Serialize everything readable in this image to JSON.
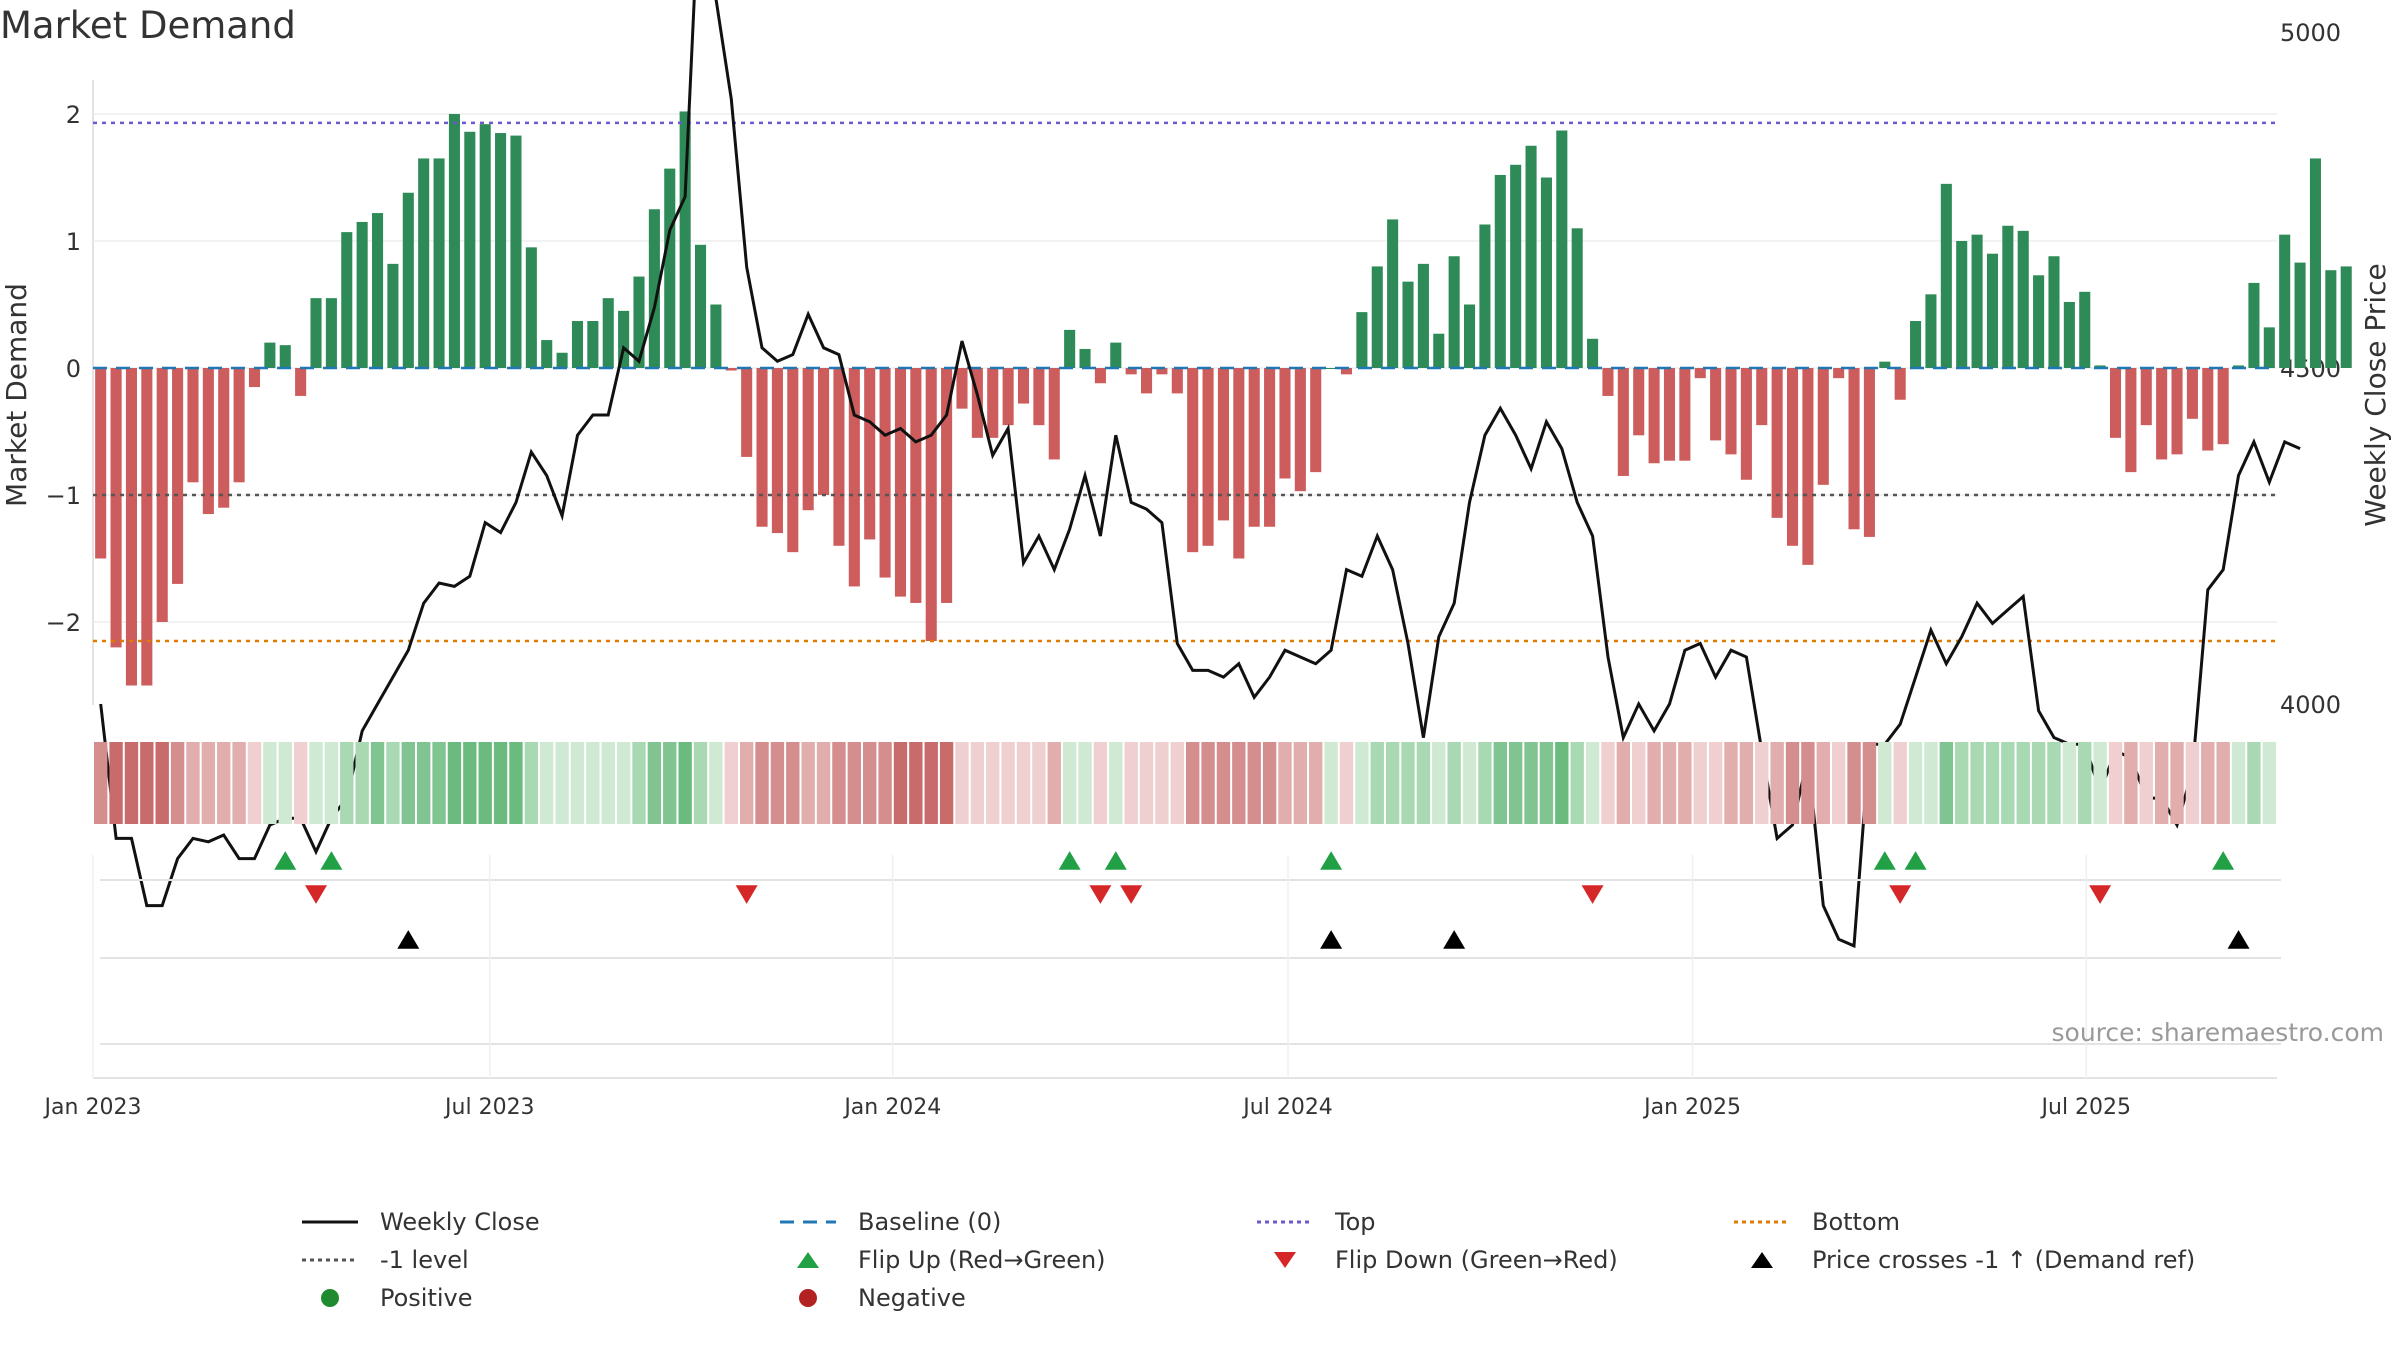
{
  "title": "Market Demand",
  "source": "source: sharemaestro.com",
  "colors": {
    "positive": "#2e8b57",
    "negative": "#cd5c5c",
    "price": "#111111",
    "baseline": "#1f77b4",
    "top": "#6a5acd",
    "bottom": "#e07b00",
    "minus_one": "#555555",
    "flip_up": "#22a046",
    "flip_down": "#d62728",
    "cross": "#000000"
  },
  "chart_data": {
    "type": "bar",
    "title": "Market Demand",
    "ylabel": "Market Demand",
    "y2label": "Weekly Close Price",
    "ylim": [
      -2.7,
      2.2
    ],
    "y2lim": [
      3550,
      5400
    ],
    "yticks": [
      2,
      1,
      0,
      -1,
      -2
    ],
    "ytick_labels": [
      "2",
      "1",
      "0",
      "−1",
      "−2"
    ],
    "y2ticks": [
      5000,
      4500,
      4000
    ],
    "y2tick_labels": [
      "5000",
      "4500",
      "4000"
    ],
    "top_level": 1.93,
    "bottom_level": -2.15,
    "minus_one_level": -1,
    "x_start": "2022-12-16",
    "week_count": 142,
    "xticks": [
      {
        "label": "Jan 2023",
        "week": 3
      },
      {
        "label": "Jul 2023",
        "week": 28.8
      },
      {
        "label": "Jan 2024",
        "week": 55
      },
      {
        "label": "Jul 2024",
        "week": 80.7
      },
      {
        "label": "Jan 2025",
        "week": 107
      },
      {
        "label": "Jul 2025",
        "week": 132.6
      }
    ],
    "demand": [
      -1.5,
      -2.2,
      -2.5,
      -2.5,
      -2.0,
      -1.7,
      -0.9,
      -1.15,
      -1.1,
      -0.9,
      -0.15,
      0.2,
      0.18,
      -0.22,
      0.55,
      0.55,
      1.07,
      1.15,
      1.22,
      0.82,
      1.38,
      1.65,
      1.65,
      2.0,
      1.86,
      1.92,
      1.85,
      1.83,
      0.95,
      0.22,
      0.12,
      0.37,
      0.37,
      0.55,
      0.45,
      0.72,
      1.25,
      1.57,
      2.02,
      0.97,
      0.5,
      -0.02,
      -0.7,
      -1.25,
      -1.3,
      -1.45,
      -1.12,
      -1.0,
      -1.4,
      -1.72,
      -1.35,
      -1.65,
      -1.8,
      -1.85,
      -2.15,
      -1.85,
      -0.32,
      -0.55,
      -0.55,
      -0.45,
      -0.28,
      -0.45,
      -0.72,
      0.3,
      0.15,
      -0.12,
      0.2,
      -0.05,
      -0.2,
      -0.05,
      -0.2,
      -1.45,
      -1.4,
      -1.2,
      -1.5,
      -1.25,
      -1.25,
      -0.87,
      -0.97,
      -0.82,
      0.0,
      -0.05,
      0.44,
      0.8,
      1.17,
      0.68,
      0.82,
      0.27,
      0.88,
      0.5,
      1.13,
      1.52,
      1.6,
      1.75,
      1.5,
      1.87,
      1.1,
      0.23,
      -0.22,
      -0.85,
      -0.53,
      -0.75,
      -0.73,
      -0.73,
      -0.08,
      -0.57,
      -0.68,
      -0.88,
      -0.45,
      -1.18,
      -1.4,
      -1.55,
      -0.92,
      -0.08,
      -1.27,
      -1.33,
      0.05,
      -0.25,
      0.37,
      0.58,
      1.45,
      1.0,
      1.05,
      0.9,
      1.12,
      1.08,
      0.73,
      0.88,
      0.52,
      0.6,
      0.02,
      -0.55,
      -0.82,
      -0.45,
      -0.72,
      -0.68,
      -0.4,
      -0.65,
      -0.6,
      0.02,
      0.67,
      0.32,
      1.05,
      0.83,
      1.65,
      0.77,
      0.8
    ],
    "price": [
      4000,
      3800,
      3800,
      3700,
      3700,
      3770,
      3800,
      3795,
      3805,
      3770,
      3770,
      3820,
      3830,
      3830,
      3780,
      3830,
      3860,
      3960,
      4000,
      4040,
      4080,
      4150,
      4180,
      4175,
      4190,
      4270,
      4255,
      4300,
      4375,
      4340,
      4280,
      4400,
      4430,
      4430,
      4530,
      4510,
      4590,
      4705,
      4755,
      5250,
      5050,
      4900,
      4650,
      4530,
      4510,
      4520,
      4580,
      4530,
      4520,
      4430,
      4420,
      4400,
      4410,
      4390,
      4400,
      4430,
      4540,
      4460,
      4370,
      4410,
      4210,
      4250,
      4200,
      4260,
      4340,
      4250,
      4400,
      4300,
      4290,
      4270,
      4090,
      4050,
      4050,
      4040,
      4060,
      4010,
      4040,
      4080,
      4070,
      4060,
      4080,
      4200,
      4190,
      4250,
      4200,
      4090,
      3950,
      4100,
      4150,
      4300,
      4400,
      4440,
      4400,
      4350,
      4420,
      4380,
      4300,
      4250,
      4070,
      3950,
      4000,
      3960,
      4000,
      4080,
      4090,
      4040,
      4080,
      4070,
      3930,
      3800,
      3820,
      3920,
      3700,
      3650,
      3640,
      3940,
      3940,
      3970,
      4040,
      4110,
      4060,
      4100,
      4150,
      4120,
      4140,
      4160,
      3990,
      3950,
      3940,
      3940,
      3870,
      3930,
      3920,
      3860,
      3860,
      3820,
      3900,
      4170,
      4200,
      4340,
      4390,
      4330,
      4390,
      4380
    ],
    "heat": [
      2,
      2,
      3,
      2,
      1,
      1,
      1,
      1,
      1,
      1,
      1,
      0,
      0,
      0,
      0,
      0,
      0,
      0,
      0,
      0,
      0,
      0,
      0,
      0,
      0,
      1,
      1,
      1,
      1,
      0,
      0,
      0,
      0,
      0,
      0,
      0,
      0,
      0,
      0,
      0,
      0,
      0,
      0,
      1,
      1,
      1,
      1,
      1,
      1,
      1,
      1,
      1,
      1,
      1,
      2,
      2,
      0,
      0,
      0,
      0,
      0,
      0,
      0,
      0,
      0,
      0,
      0,
      0,
      0,
      0,
      0,
      1,
      1,
      1,
      1,
      1,
      1,
      1,
      1,
      1,
      0,
      0,
      0,
      0,
      0,
      0,
      0,
      0,
      0,
      0,
      0,
      0,
      0,
      0,
      0,
      0,
      0,
      0,
      0,
      0,
      0,
      0,
      0,
      0,
      0,
      0,
      0,
      0,
      0,
      1,
      1,
      1,
      1,
      1,
      1,
      1,
      0,
      0,
      0,
      0,
      0,
      0,
      0,
      0,
      0,
      0,
      0,
      0,
      0,
      0,
      0,
      0,
      0,
      0,
      0,
      0,
      0,
      0,
      0,
      0,
      0,
      0
    ],
    "flip_up_weeks": [
      12,
      15,
      63,
      66,
      80,
      116,
      118,
      138
    ],
    "flip_down_weeks": [
      14,
      42,
      65,
      67,
      97,
      117,
      130
    ],
    "cross_weeks": [
      20,
      80,
      88,
      139
    ],
    "legend": [
      {
        "label": "Weekly Close",
        "kind": "line-solid"
      },
      {
        "label": "Baseline (0)",
        "kind": "line-dash-blue"
      },
      {
        "label": "Top",
        "kind": "line-dot-purple"
      },
      {
        "label": "Bottom",
        "kind": "line-dot-orange"
      },
      {
        "label": "-1 level",
        "kind": "line-dot-gray"
      },
      {
        "label": "Flip Up (Red→Green)",
        "kind": "tri-up-green"
      },
      {
        "label": "Flip Down (Green→Red)",
        "kind": "tri-down-red"
      },
      {
        "label": "Price crosses -1 ↑ (Demand ref)",
        "kind": "tri-up-black"
      },
      {
        "label": "Positive",
        "kind": "dot-green"
      },
      {
        "label": "Negative",
        "kind": "dot-red"
      }
    ]
  }
}
